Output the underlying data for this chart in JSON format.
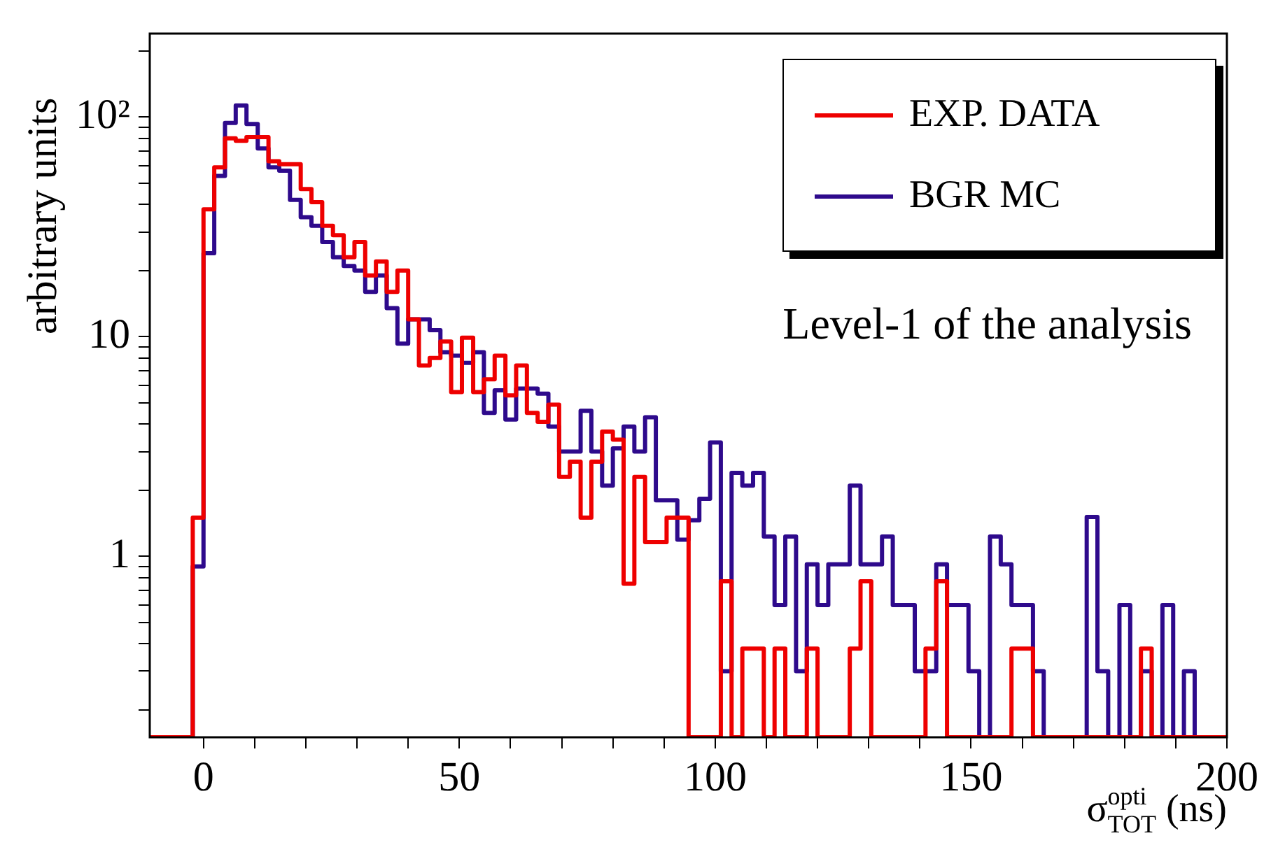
{
  "chart_data": {
    "type": "histogram",
    "xlabel": "σ$_{TOT}$$^{opti}$ (ns)",
    "ylabel": "arbitrary units",
    "annotations": [
      "Level-1 of the analysis"
    ],
    "bins": [
      -10.5,
      -8.4,
      -6.3,
      -4.2,
      -2.1,
      0.0,
      2.1,
      4.2,
      6.3,
      8.4,
      10.6,
      12.7,
      14.8,
      16.9,
      19.0,
      21.1,
      23.2,
      25.3,
      27.4,
      29.5,
      31.6,
      33.7,
      35.8,
      37.9,
      40.0,
      42.1,
      44.2,
      46.3,
      48.4,
      50.5,
      52.7,
      54.8,
      56.9,
      59.0,
      61.1,
      63.2,
      65.3,
      67.4,
      69.5,
      71.6,
      73.7,
      75.8,
      77.9,
      80.0,
      82.1,
      84.2,
      86.3,
      88.4,
      90.5,
      92.6,
      94.8,
      96.9,
      99.0,
      101.1,
      103.2,
      105.3,
      107.4,
      109.5,
      111.6,
      113.7,
      115.8,
      117.9,
      120.0,
      122.1,
      124.2,
      126.3,
      128.4,
      130.5,
      132.6,
      134.7,
      136.9,
      139.0,
      141.1,
      143.2,
      145.3,
      147.4,
      149.5,
      151.6,
      153.7,
      155.8,
      157.9,
      160.0,
      162.1,
      164.2,
      166.3,
      168.4,
      170.5,
      172.6,
      174.7,
      176.8,
      179.0,
      181.1,
      183.2,
      185.3,
      187.4,
      189.5,
      191.6,
      193.7,
      195.8,
      197.9,
      200.0
    ],
    "series": [
      {
        "name": "EXP. DATA",
        "color": "#ee0000",
        "values": [
          null,
          null,
          null,
          null,
          1.5,
          38,
          59,
          80,
          78,
          81,
          81,
          63,
          61,
          61,
          47,
          41,
          32,
          29,
          23,
          27,
          19,
          22,
          16,
          20,
          12,
          7.4,
          8.0,
          9.5,
          5.6,
          9.9,
          5.6,
          6.4,
          8.2,
          5.4,
          7.4,
          4.5,
          4.1,
          4.9,
          2.3,
          2.7,
          1.5,
          2.7,
          3.7,
          3.4,
          0.75,
          2.3,
          1.16,
          1.16,
          1.5,
          1.5,
          null,
          null,
          null,
          0.77,
          null,
          0.38,
          0.38,
          null,
          0.38,
          null,
          null,
          0.38,
          null,
          null,
          null,
          0.38,
          0.77,
          null,
          null,
          null,
          null,
          null,
          0.38,
          0.77,
          null,
          null,
          null,
          null,
          null,
          null,
          0.38,
          0.38,
          null,
          null,
          null,
          null,
          null,
          null,
          null,
          null,
          null,
          null,
          0.38,
          null,
          null,
          null,
          null,
          null,
          null,
          null
        ]
      },
      {
        "name": "BGR MC",
        "color": "#2e0a8c",
        "values": [
          null,
          null,
          null,
          null,
          0.9,
          24,
          54,
          94,
          113,
          93,
          72,
          59,
          57,
          42,
          35,
          32,
          27,
          23,
          21,
          20,
          16,
          19,
          13.5,
          9.3,
          12,
          12,
          10.7,
          8.5,
          8.2,
          7.6,
          8.5,
          4.5,
          5.7,
          4.2,
          5.8,
          5.8,
          5.5,
          3.9,
          3.0,
          3.0,
          4.6,
          3.0,
          2.1,
          3.1,
          3.9,
          3.0,
          4.3,
          1.8,
          1.8,
          1.19,
          1.46,
          1.83,
          3.3,
          0.3,
          2.4,
          2.1,
          2.4,
          1.23,
          0.6,
          1.23,
          0.3,
          0.92,
          0.6,
          0.92,
          0.92,
          2.1,
          0.92,
          0.92,
          1.23,
          0.6,
          0.6,
          0.3,
          0.3,
          0.92,
          0.6,
          0.6,
          0.3,
          null,
          1.23,
          0.92,
          0.6,
          0.6,
          0.3,
          null,
          null,
          null,
          null,
          1.51,
          0.3,
          null,
          0.6,
          null,
          0.3,
          null,
          0.6,
          null,
          0.3,
          null,
          null,
          null
        ]
      }
    ],
    "xlim": [
      -10.5,
      200
    ],
    "xticks": [
      0,
      {
        "value": 10,
        "label": null
      },
      {
        "value": 20,
        "label": null
      },
      {
        "value": 30,
        "label": null
      },
      {
        "value": 40,
        "label": null
      },
      50,
      {
        "value": 60,
        "label": null
      },
      {
        "value": 70,
        "label": null
      },
      {
        "value": 80,
        "label": null
      },
      {
        "value": 90,
        "label": null
      },
      100,
      {
        "value": 110,
        "label": null
      },
      {
        "value": 120,
        "label": null
      },
      {
        "value": 130,
        "label": null
      },
      {
        "value": 140,
        "label": null
      },
      150,
      {
        "value": 160,
        "label": null
      },
      {
        "value": 170,
        "label": null
      },
      {
        "value": 180,
        "label": null
      },
      {
        "value": 190,
        "label": null
      },
      200
    ],
    "ylim": [
      0.15,
      240
    ],
    "yticks": [
      {
        "value": 0.2,
        "label": null
      },
      {
        "value": 0.3,
        "label": null
      },
      {
        "value": 0.4,
        "label": null
      },
      {
        "value": 0.5,
        "label": null
      },
      {
        "value": 0.6,
        "label": null
      },
      {
        "value": 0.7,
        "label": null
      },
      {
        "value": 0.8,
        "label": null
      },
      {
        "value": 0.9,
        "label": null
      },
      1,
      {
        "value": 2,
        "label": null
      },
      {
        "value": 3,
        "label": null
      },
      {
        "value": 4,
        "label": null
      },
      {
        "value": 5,
        "label": null
      },
      {
        "value": 6,
        "label": null
      },
      {
        "value": 7,
        "label": null
      },
      {
        "value": 8,
        "label": null
      },
      {
        "value": 9,
        "label": null
      },
      10,
      {
        "value": 20,
        "label": null
      },
      {
        "value": 30,
        "label": null
      },
      {
        "value": 40,
        "label": null
      },
      {
        "value": 50,
        "label": null
      },
      {
        "value": 60,
        "label": null
      },
      {
        "value": 70,
        "label": null
      },
      {
        "value": 80,
        "label": null
      },
      {
        "value": 90,
        "label": null
      },
      {
        "value": 100,
        "label": "10²"
      },
      {
        "value": 200,
        "label": null
      }
    ],
    "log": "y",
    "legend": "top right",
    "grid": false
  }
}
